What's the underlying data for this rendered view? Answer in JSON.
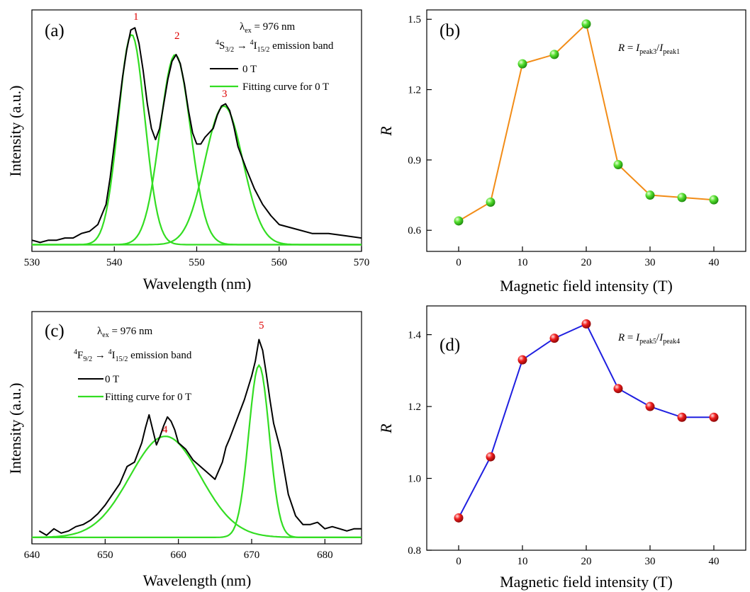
{
  "colors": {
    "measured": "#000000",
    "fit": "#33dd22",
    "peak_label": "#dd0000",
    "line_b": "#f28c17",
    "marker_b": "#33dd22",
    "line_d": "#1f1fe0",
    "marker_d": "#ee1111"
  },
  "chart_data": [
    {
      "id": "a",
      "type": "line",
      "panel_label": "(a)",
      "xlabel": "Wavelength (nm)",
      "ylabel": "Intensity (a.u.)",
      "xlim": [
        530,
        570
      ],
      "xticks": [
        "530",
        "540",
        "550",
        "560",
        "570"
      ],
      "y_ticks_shown": false,
      "annotations": {
        "excitation": {
          "base": "λ",
          "sub": "ex",
          "rest": " = 976 nm"
        },
        "transition": {
          "sup1": "4",
          "b1": "S",
          "sub1": "3/2",
          "sup2": "4",
          "b2": "I",
          "sub2": "15/2",
          "tail": " emission band"
        },
        "peak_labels": [
          "1",
          "2",
          "3"
        ]
      },
      "legend": {
        "placement": "top-right",
        "entries": [
          "0 T",
          "Fitting curve for 0 T"
        ]
      },
      "peaks": [
        {
          "label": "1",
          "center_nm": 542.1,
          "relative_height": 0.94
        },
        {
          "label": "2",
          "center_nm": 547.4,
          "relative_height": 0.85
        },
        {
          "label": "3",
          "center_nm": 553.3,
          "relative_height": 0.62
        }
      ],
      "series": [
        {
          "name": "0 T",
          "style": "measured",
          "x": [
            530,
            531,
            532,
            533,
            534,
            535,
            536,
            537,
            538,
            539,
            539.5,
            540,
            540.5,
            541,
            541.5,
            542,
            542.5,
            543,
            543.5,
            544,
            544.5,
            545,
            545.5,
            546,
            546.5,
            547,
            547.5,
            548,
            548.5,
            549,
            549.5,
            550,
            550.5,
            551,
            552,
            552.5,
            553,
            553.5,
            554,
            554.5,
            555,
            556,
            557,
            558,
            559,
            560,
            562,
            564,
            566,
            568,
            570
          ],
          "y": [
            0.02,
            0.01,
            0.02,
            0.02,
            0.03,
            0.03,
            0.05,
            0.06,
            0.09,
            0.18,
            0.3,
            0.45,
            0.6,
            0.75,
            0.87,
            0.96,
            0.97,
            0.9,
            0.78,
            0.63,
            0.52,
            0.47,
            0.52,
            0.63,
            0.74,
            0.82,
            0.85,
            0.81,
            0.72,
            0.6,
            0.5,
            0.45,
            0.45,
            0.48,
            0.52,
            0.58,
            0.62,
            0.63,
            0.6,
            0.53,
            0.44,
            0.34,
            0.25,
            0.18,
            0.13,
            0.09,
            0.07,
            0.05,
            0.05,
            0.04,
            0.03
          ]
        },
        {
          "name": "Fitting curve for 0 T",
          "style": "fit",
          "component": "1"
        },
        {
          "name": "Fitting curve for 0 T",
          "style": "fit",
          "component": "2"
        },
        {
          "name": "Fitting curve for 0 T",
          "style": "fit",
          "component": "3"
        }
      ]
    },
    {
      "id": "b",
      "type": "line",
      "panel_label": "(b)",
      "xlabel": "Magnetic field intensity (T)",
      "ylabel": "R",
      "formula": {
        "lhs": "R",
        "eq": " = ",
        "i1": "I",
        "s1": "peak3",
        "slash": "/",
        "i2": "I",
        "s2": "peak1"
      },
      "xlim": [
        -5,
        45
      ],
      "ylim": [
        0.51,
        1.54
      ],
      "xticks": [
        "0",
        "10",
        "20",
        "30",
        "40"
      ],
      "yticks": [
        "0.6",
        "0.9",
        "1.2",
        "1.5"
      ],
      "series": [
        {
          "x": [
            0,
            5,
            10,
            15,
            20,
            25,
            30,
            35,
            40
          ],
          "y": [
            0.64,
            0.72,
            1.31,
            1.35,
            1.48,
            0.88,
            0.75,
            0.74,
            0.73
          ]
        }
      ]
    },
    {
      "id": "c",
      "type": "line",
      "panel_label": "(c)",
      "xlabel": "Wavelength (nm)",
      "ylabel": "Intensity (a.u.)",
      "xlim": [
        640,
        685
      ],
      "xticks": [
        "640",
        "650",
        "660",
        "670",
        "680"
      ],
      "y_ticks_shown": false,
      "annotations": {
        "excitation": {
          "base": "λ",
          "sub": "ex",
          "rest": " = 976 nm"
        },
        "transition": {
          "sup1": "4",
          "b1": "F",
          "sub1": "9/2",
          "sup2": "4",
          "b2": "I",
          "sub2": "15/2",
          "tail": " emission band"
        },
        "peak_labels": [
          "4",
          "5"
        ]
      },
      "legend": {
        "placement": "top-left",
        "entries": [
          "0 T",
          "Fitting curve for 0 T"
        ]
      },
      "peaks": [
        {
          "label": "4",
          "center_nm": 658.2,
          "relative_height": 0.47
        },
        {
          "label": "5",
          "center_nm": 671.0,
          "relative_height": 0.8
        }
      ],
      "series": [
        {
          "name": "0 T",
          "style": "measured",
          "x": [
            641,
            642,
            643,
            644,
            645,
            646,
            647,
            648,
            649,
            650,
            651,
            652,
            653,
            654,
            655,
            655.5,
            656,
            656.5,
            657,
            657.5,
            658,
            658.5,
            659,
            659.5,
            660,
            661,
            662,
            663,
            664,
            665,
            666,
            666.5,
            667,
            668,
            669,
            670,
            670.5,
            671,
            671.5,
            672,
            672.5,
            673,
            674,
            675,
            676,
            677,
            678,
            679,
            680,
            681,
            682,
            683,
            684,
            685
          ],
          "y": [
            0.03,
            0.01,
            0.04,
            0.02,
            0.03,
            0.05,
            0.06,
            0.08,
            0.11,
            0.15,
            0.2,
            0.25,
            0.33,
            0.35,
            0.44,
            0.51,
            0.57,
            0.5,
            0.43,
            0.47,
            0.52,
            0.56,
            0.54,
            0.5,
            0.44,
            0.41,
            0.36,
            0.33,
            0.3,
            0.27,
            0.35,
            0.42,
            0.46,
            0.55,
            0.64,
            0.75,
            0.82,
            0.92,
            0.87,
            0.76,
            0.64,
            0.53,
            0.4,
            0.2,
            0.1,
            0.06,
            0.06,
            0.07,
            0.04,
            0.05,
            0.04,
            0.03,
            0.04,
            0.04
          ]
        },
        {
          "name": "Fitting curve for 0 T",
          "style": "fit",
          "component": "4"
        },
        {
          "name": "Fitting curve for 0 T",
          "style": "fit",
          "component": "5"
        }
      ]
    },
    {
      "id": "d",
      "type": "line",
      "panel_label": "(d)",
      "xlabel": "Magnetic field intensity (T)",
      "ylabel": "R",
      "formula": {
        "lhs": "R",
        "eq": " = ",
        "i1": "I",
        "s1": "peak5",
        "slash": "/",
        "i2": "I",
        "s2": "peak4"
      },
      "xlim": [
        -5,
        45
      ],
      "ylim": [
        0.8,
        1.48
      ],
      "xticks": [
        "0",
        "10",
        "20",
        "30",
        "40"
      ],
      "yticks": [
        "0.8",
        "1.0",
        "1.2",
        "1.4"
      ],
      "series": [
        {
          "x": [
            0,
            5,
            10,
            15,
            20,
            25,
            30,
            35,
            40
          ],
          "y": [
            0.89,
            1.06,
            1.33,
            1.39,
            1.43,
            1.25,
            1.2,
            1.17,
            1.17
          ]
        }
      ]
    }
  ]
}
